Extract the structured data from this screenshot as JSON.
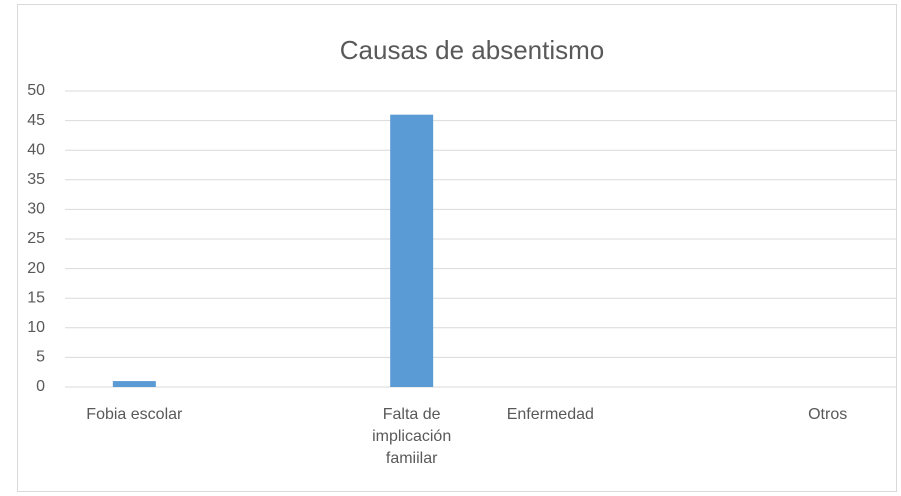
{
  "chart_data": {
    "type": "bar",
    "title": "Causas de absentismo",
    "categories": [
      "Fobia escolar",
      null,
      "Falta de implicación famiilar",
      "Enfermedad",
      null,
      "Otros"
    ],
    "values": [
      1,
      null,
      46,
      0,
      null,
      0
    ],
    "color": "#5b9bd5",
    "ylim": [
      0,
      50
    ],
    "yticks": [
      0,
      5,
      10,
      15,
      20,
      25,
      30,
      35,
      40,
      45,
      50
    ],
    "grid": true
  }
}
